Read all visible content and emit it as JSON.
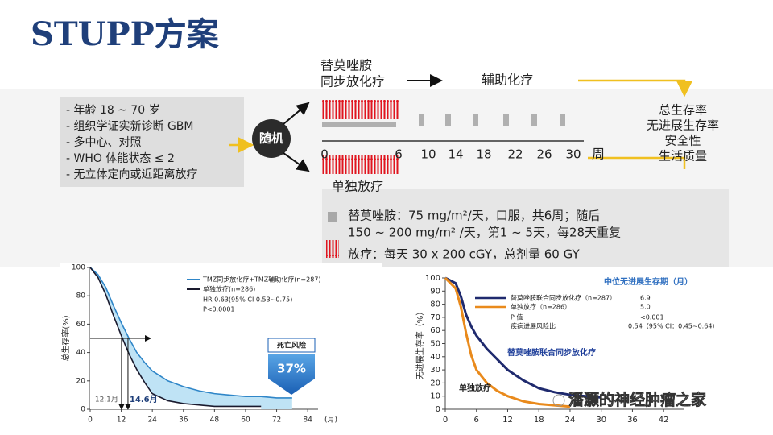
{
  "title": "STUPP方案",
  "diagram": {
    "eligibility": [
      "- 年龄 18 ~ 70 岁",
      "- 组织学证实新诊断 GBM",
      "- 多中心、对照",
      "- WHO 体能状态 ≤ 2",
      "- 无立体定向或近距离放疗"
    ],
    "randomize": "随机",
    "arm1_label": [
      "替莫唑胺",
      "同步放化疗"
    ],
    "adjuvant": "辅助化疗",
    "arm2_label": "单独放疗",
    "timeline": {
      "ticks": [
        "0",
        "6",
        "10",
        "14",
        "18",
        "22",
        "26",
        "30"
      ],
      "unit": "周"
    },
    "endpoints": [
      "总生存率",
      "无进展生存率",
      "安全性",
      "生活质量"
    ],
    "legend": {
      "tmz": [
        "替莫唑胺：75 mg/m²/天，口服，共6周；随后",
        "150 ~ 200 mg/m² /天，第1 ~ 5天，每28天重复"
      ],
      "rt": "放疗：每天 30 x 200 cGY，总剂量 60 GY"
    }
  },
  "chart_data": [
    {
      "type": "line",
      "ylabel": "总生存率(%)",
      "xlabel": "(月)",
      "x": [
        0,
        3,
        6,
        9,
        12,
        15,
        18,
        21,
        24,
        30,
        36,
        42,
        48,
        54,
        60,
        66,
        72,
        78
      ],
      "series": [
        {
          "name": "TMZ同步放化疗+TMZ辅助化疗(n=287)",
          "color": "#2f86c8",
          "values": [
            100,
            95,
            86,
            73,
            61,
            50,
            40,
            33,
            27,
            20,
            16,
            13,
            11,
            10,
            9,
            9,
            8,
            8
          ]
        },
        {
          "name": "单独放疗(n=286)",
          "color": "#1a1a2e",
          "values": [
            100,
            93,
            81,
            66,
            52,
            39,
            28,
            19,
            11,
            6,
            4,
            3,
            2,
            2,
            2,
            2,
            null,
            null
          ]
        }
      ],
      "area_color": "#bfe3f5",
      "notes": [
        "HR 0.63(95% CI 0.53~0.75)",
        "P<0.0001"
      ],
      "medians": [
        {
          "value": 12.1,
          "label": "12.1月"
        },
        {
          "value": 14.6,
          "label": "14.6月"
        }
      ],
      "risk": {
        "title": "死亡风险",
        "value": 37,
        "label": "37%"
      },
      "xlim": [
        0,
        88
      ],
      "xticks": [
        0,
        12,
        24,
        36,
        48,
        60,
        72,
        84
      ],
      "ylim": [
        0,
        100
      ],
      "yticks": [
        0,
        20,
        40,
        60,
        80,
        100
      ]
    },
    {
      "type": "line",
      "ylabel": "无进展生存率（%）",
      "x": [
        0,
        2,
        3,
        4,
        5,
        6,
        8,
        10,
        12,
        15,
        18,
        21,
        24,
        27,
        30
      ],
      "series": [
        {
          "name": "替莫唑胺联合同步放化疗（n=287）",
          "color": "#1f2a6e",
          "values": [
            100,
            96,
            86,
            72,
            63,
            56,
            46,
            38,
            30,
            22,
            16,
            13,
            11,
            10,
            9
          ]
        },
        {
          "name": "单独放疗（n=286）",
          "color": "#e98a1c",
          "values": [
            100,
            92,
            78,
            58,
            41,
            30,
            20,
            14,
            10,
            6,
            4,
            3,
            2,
            null,
            null
          ]
        }
      ],
      "legend_title": "中位无进展生存期（月）",
      "legend_values": [
        "6.9",
        "5.0"
      ],
      "stats": [
        [
          "P 值",
          "<0.001"
        ],
        [
          "疾病进展风险比",
          "0.54（95% CI：0.45~0.64）"
        ]
      ],
      "annotations": [
        "替莫唑胺联合同步放化疗",
        "单独放疗"
      ],
      "xlim": [
        0,
        46
      ],
      "xticks": [
        0,
        6,
        12,
        18,
        24,
        30,
        36,
        42
      ],
      "ylim": [
        0,
        100
      ],
      "yticks": [
        0,
        10,
        20,
        30,
        40,
        50,
        60,
        70,
        80,
        90,
        100
      ]
    }
  ],
  "watermark": "潘灏的神经肿瘤之家"
}
